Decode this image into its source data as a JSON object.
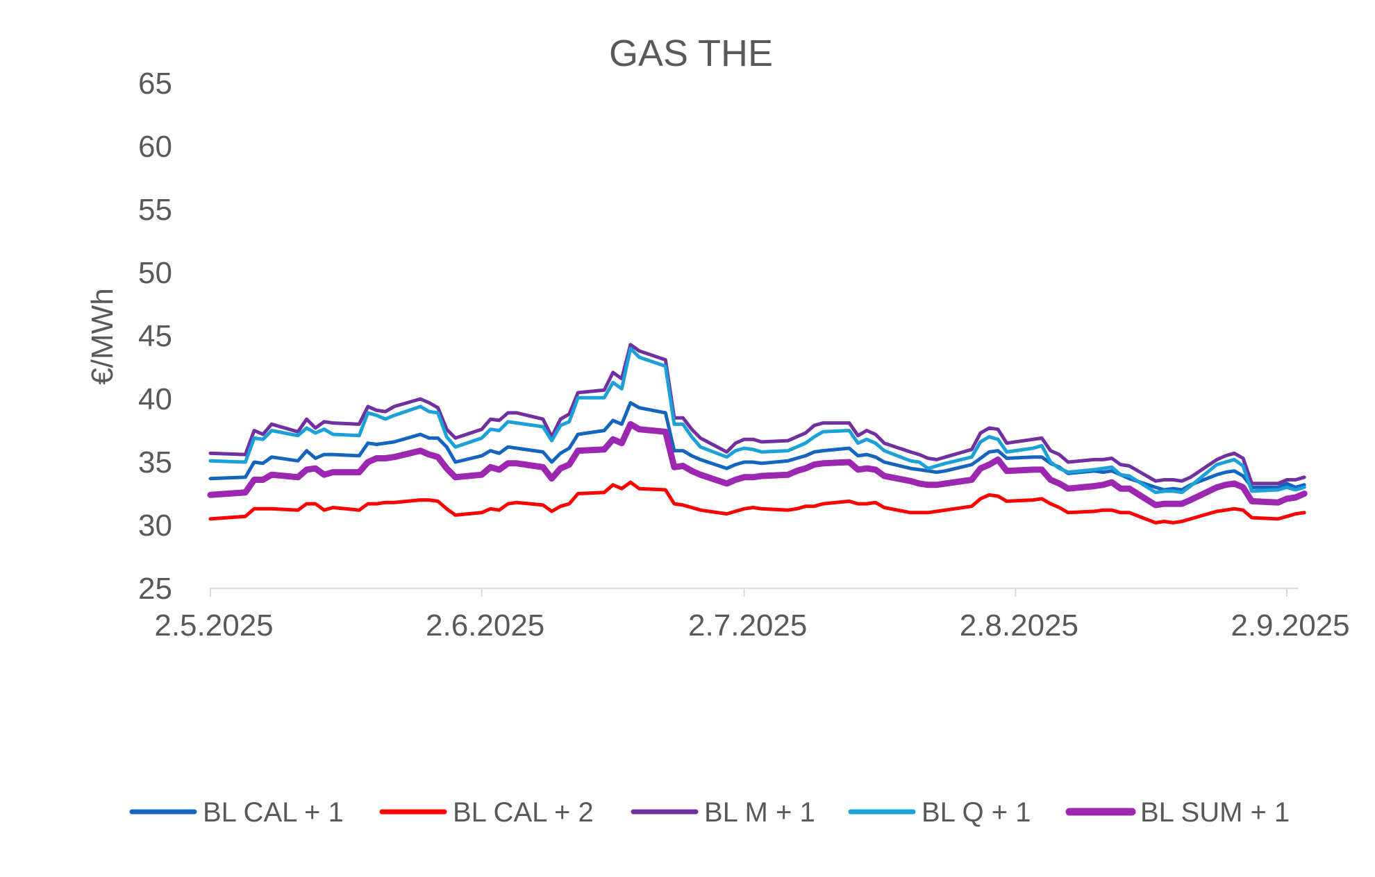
{
  "chart_data": {
    "type": "line",
    "title": "GAS THE",
    "xlabel": "",
    "ylabel": "€/MWh",
    "ylim": [
      25,
      65
    ],
    "yticks": [
      "25",
      "30",
      "35",
      "40",
      "45",
      "50",
      "55",
      "60",
      "65"
    ],
    "xticks": [
      "2.5.2025",
      "2.6.2025",
      "2.7.2025",
      "2.8.2025",
      "2.9.2025"
    ],
    "xlim": [
      "2025-05-02",
      "2025-09-02"
    ],
    "grid": false,
    "legend_position": "bottom",
    "x": [
      "2025-05-02",
      "2025-05-06",
      "2025-05-07",
      "2025-05-08",
      "2025-05-09",
      "2025-05-12",
      "2025-05-13",
      "2025-05-14",
      "2025-05-15",
      "2025-05-16",
      "2025-05-19",
      "2025-05-20",
      "2025-05-21",
      "2025-05-22",
      "2025-05-23",
      "2025-05-26",
      "2025-05-27",
      "2025-05-28",
      "2025-05-29",
      "2025-05-30",
      "2025-06-02",
      "2025-06-03",
      "2025-06-04",
      "2025-06-05",
      "2025-06-06",
      "2025-06-09",
      "2025-06-10",
      "2025-06-11",
      "2025-06-12",
      "2025-06-13",
      "2025-06-16",
      "2025-06-17",
      "2025-06-18",
      "2025-06-19",
      "2025-06-20",
      "2025-06-23",
      "2025-06-24",
      "2025-06-25",
      "2025-06-26",
      "2025-06-27",
      "2025-06-30",
      "2025-07-01",
      "2025-07-02",
      "2025-07-03",
      "2025-07-04",
      "2025-07-07",
      "2025-07-08",
      "2025-07-09",
      "2025-07-10",
      "2025-07-11",
      "2025-07-14",
      "2025-07-15",
      "2025-07-16",
      "2025-07-17",
      "2025-07-18",
      "2025-07-21",
      "2025-07-22",
      "2025-07-23",
      "2025-07-24",
      "2025-07-25",
      "2025-07-28",
      "2025-07-29",
      "2025-07-30",
      "2025-07-31",
      "2025-08-01",
      "2025-08-04",
      "2025-08-05",
      "2025-08-06",
      "2025-08-07",
      "2025-08-08",
      "2025-08-11",
      "2025-08-12",
      "2025-08-13",
      "2025-08-14",
      "2025-08-15",
      "2025-08-18",
      "2025-08-19",
      "2025-08-20",
      "2025-08-21",
      "2025-08-22",
      "2025-08-25",
      "2025-08-26",
      "2025-08-27",
      "2025-08-28",
      "2025-08-29",
      "2025-09-01",
      "2025-09-02",
      "2025-09-03",
      "2025-09-04"
    ],
    "series": [
      {
        "name": "BL CAL + 1",
        "color": "#1565C0",
        "width": 5,
        "values": [
          33.7,
          33.8,
          35.0,
          34.9,
          35.4,
          35.1,
          35.9,
          35.3,
          35.6,
          35.6,
          35.5,
          36.5,
          36.4,
          36.5,
          36.6,
          37.2,
          36.9,
          36.9,
          36.2,
          35.0,
          35.5,
          35.9,
          35.7,
          36.2,
          36.1,
          35.8,
          35.0,
          35.7,
          36.1,
          37.2,
          37.5,
          38.3,
          38.0,
          39.7,
          39.3,
          38.9,
          35.9,
          35.9,
          35.5,
          35.2,
          34.5,
          34.8,
          35.0,
          35.0,
          34.9,
          35.1,
          35.3,
          35.5,
          35.8,
          35.9,
          36.1,
          35.5,
          35.6,
          35.4,
          35.0,
          34.5,
          34.4,
          34.3,
          34.2,
          34.3,
          34.8,
          35.3,
          35.8,
          35.9,
          35.3,
          35.4,
          35.4,
          34.9,
          34.6,
          34.1,
          34.3,
          34.2,
          34.3,
          34.0,
          33.7,
          33.0,
          32.8,
          32.9,
          32.8,
          33.2,
          34.0,
          34.2,
          34.3,
          33.9,
          33.0,
          33.0,
          33.3,
          33.0,
          33.2
        ]
      },
      {
        "name": "BL CAL + 2",
        "color": "#FF0000",
        "width": 5,
        "values": [
          30.5,
          30.7,
          31.3,
          31.3,
          31.3,
          31.2,
          31.7,
          31.7,
          31.2,
          31.4,
          31.2,
          31.7,
          31.7,
          31.8,
          31.8,
          32.0,
          32.0,
          31.9,
          31.3,
          30.8,
          31.0,
          31.3,
          31.2,
          31.7,
          31.8,
          31.6,
          31.1,
          31.5,
          31.7,
          32.5,
          32.6,
          33.2,
          32.9,
          33.4,
          32.9,
          32.8,
          31.7,
          31.6,
          31.4,
          31.2,
          30.9,
          31.1,
          31.3,
          31.4,
          31.3,
          31.2,
          31.3,
          31.5,
          31.5,
          31.7,
          31.9,
          31.7,
          31.7,
          31.8,
          31.4,
          31.0,
          31.0,
          31.0,
          31.1,
          31.2,
          31.5,
          32.1,
          32.4,
          32.3,
          31.9,
          32.0,
          32.1,
          31.7,
          31.4,
          31.0,
          31.1,
          31.2,
          31.2,
          31.0,
          31.0,
          30.2,
          30.3,
          30.2,
          30.3,
          30.5,
          31.1,
          31.2,
          31.3,
          31.2,
          30.6,
          30.5,
          30.7,
          30.9,
          31.0
        ]
      },
      {
        "name": "BL M + 1",
        "color": "#7030A0",
        "width": 5,
        "values": [
          35.7,
          35.6,
          37.5,
          37.2,
          38.0,
          37.4,
          38.4,
          37.7,
          38.2,
          38.1,
          38.0,
          39.4,
          39.1,
          39.0,
          39.4,
          40.0,
          39.7,
          39.3,
          37.6,
          36.9,
          37.6,
          38.4,
          38.3,
          38.9,
          38.9,
          38.4,
          37.0,
          38.4,
          38.8,
          40.5,
          40.7,
          42.1,
          41.6,
          44.3,
          43.8,
          43.1,
          38.5,
          38.5,
          37.6,
          36.9,
          35.8,
          36.5,
          36.8,
          36.8,
          36.6,
          36.7,
          37.0,
          37.3,
          37.9,
          38.1,
          38.1,
          37.1,
          37.5,
          37.2,
          36.5,
          35.8,
          35.6,
          35.3,
          35.2,
          35.4,
          36.0,
          37.3,
          37.7,
          37.6,
          36.5,
          36.8,
          36.9,
          35.9,
          35.6,
          35.0,
          35.2,
          35.2,
          35.3,
          34.8,
          34.7,
          33.5,
          33.6,
          33.6,
          33.5,
          33.8,
          35.2,
          35.5,
          35.7,
          35.3,
          33.3,
          33.3,
          33.6,
          33.6,
          33.8
        ]
      },
      {
        "name": "BL Q + 1",
        "color": "#1BA1D8",
        "width": 5,
        "values": [
          35.1,
          35.0,
          36.9,
          36.8,
          37.5,
          37.1,
          37.7,
          37.3,
          37.6,
          37.2,
          37.1,
          38.9,
          38.7,
          38.4,
          38.7,
          39.4,
          39.0,
          38.9,
          37.0,
          36.2,
          36.9,
          37.6,
          37.5,
          38.2,
          38.1,
          37.8,
          36.7,
          37.9,
          38.2,
          40.1,
          40.1,
          41.3,
          40.8,
          44.0,
          43.3,
          42.6,
          38.0,
          38.0,
          37.0,
          36.2,
          35.4,
          35.9,
          36.1,
          36.0,
          35.8,
          35.9,
          36.2,
          36.5,
          37.0,
          37.4,
          37.5,
          36.5,
          36.8,
          36.5,
          35.9,
          35.1,
          35.0,
          34.5,
          34.7,
          34.9,
          35.4,
          36.6,
          37.0,
          36.8,
          35.8,
          36.1,
          36.3,
          35.0,
          34.5,
          34.2,
          34.4,
          34.5,
          34.6,
          34.0,
          33.9,
          32.6,
          32.7,
          32.7,
          32.6,
          33.1,
          34.8,
          35.0,
          35.2,
          34.7,
          32.7,
          32.8,
          33.0,
          32.8,
          33.0
        ]
      },
      {
        "name": "BL SUM + 1",
        "color": "#9C27B0",
        "width": 9,
        "values": [
          32.4,
          32.6,
          33.6,
          33.6,
          34.0,
          33.8,
          34.4,
          34.5,
          34.0,
          34.2,
          34.2,
          35.0,
          35.3,
          35.3,
          35.4,
          35.9,
          35.6,
          35.4,
          34.5,
          33.8,
          34.0,
          34.6,
          34.4,
          34.9,
          34.9,
          34.6,
          33.7,
          34.5,
          34.8,
          35.9,
          36.0,
          36.8,
          36.5,
          38.0,
          37.6,
          37.4,
          34.6,
          34.7,
          34.3,
          34.0,
          33.3,
          33.6,
          33.8,
          33.8,
          33.9,
          34.0,
          34.3,
          34.5,
          34.8,
          34.9,
          35.0,
          34.4,
          34.5,
          34.4,
          33.9,
          33.5,
          33.3,
          33.2,
          33.2,
          33.3,
          33.6,
          34.5,
          34.8,
          35.2,
          34.3,
          34.4,
          34.4,
          33.6,
          33.3,
          32.9,
          33.1,
          33.2,
          33.4,
          32.9,
          32.9,
          31.6,
          31.7,
          31.7,
          31.7,
          32.0,
          33.0,
          33.2,
          33.3,
          33.0,
          31.9,
          31.8,
          32.1,
          32.2,
          32.5
        ]
      }
    ]
  }
}
